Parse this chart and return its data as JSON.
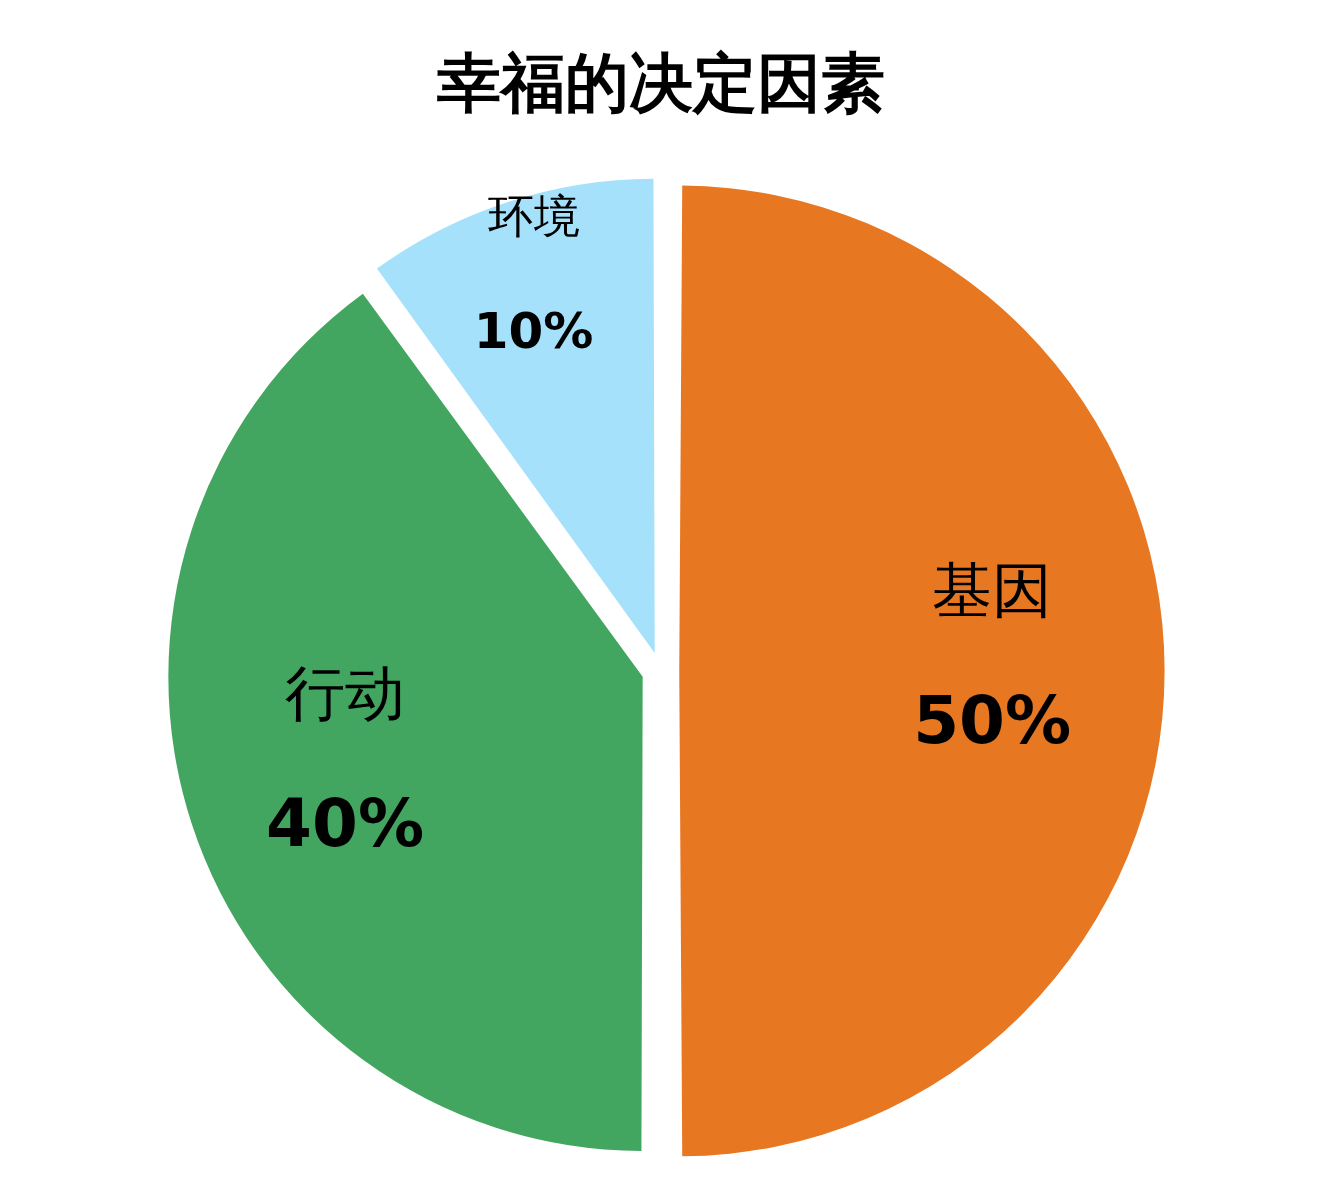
{
  "chart_data": {
    "type": "pie",
    "title": "幸福的决定因素",
    "categories": [
      "基因",
      "行动",
      "环境"
    ],
    "values": [
      50,
      40,
      10
    ],
    "colors": [
      "#e87722",
      "#43a660",
      "#a6e1fb"
    ],
    "value_labels": [
      "50%",
      "40%",
      "10%"
    ],
    "legend": false
  }
}
